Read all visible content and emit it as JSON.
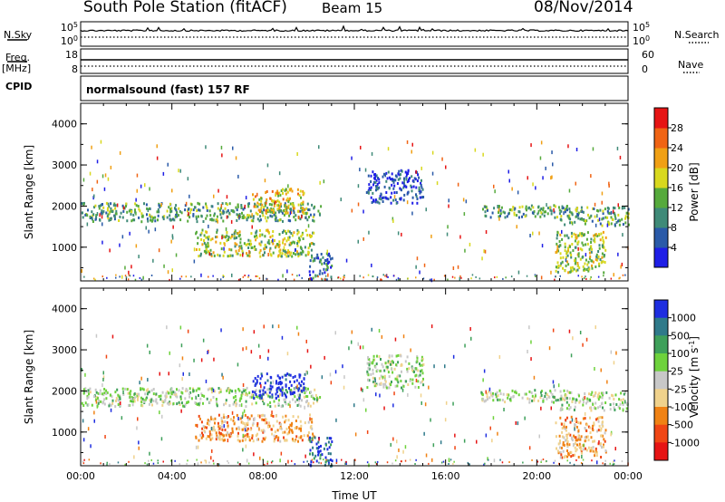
{
  "header": {
    "title": "South Pole Station (fitACF)",
    "beam": "Beam 15",
    "date": "08/Nov/2014"
  },
  "left_labels": {
    "nsky": "N.Sky",
    "freq_top": "Freq.",
    "freq_unit": "[MHz]",
    "cpid": "CPID"
  },
  "right_labels": {
    "nsearch": "N.Search",
    "nave": "Nave"
  },
  "mode_line": "normalsound (fast) 157 RF",
  "chart_data": [
    {
      "type": "line",
      "panel": "noise",
      "left_axis_ticks": [
        "10^5",
        "10^0"
      ],
      "right_axis_ticks": [
        "10^5",
        "10^0"
      ],
      "series": [
        {
          "name": "N.Sky"
        },
        {
          "name": "N.Search"
        }
      ]
    },
    {
      "type": "line",
      "panel": "frequency",
      "left_axis_ticks": [
        "18",
        "8"
      ],
      "right_axis_ticks": [
        "60",
        "0"
      ],
      "series": [
        {
          "name": "Freq."
        },
        {
          "name": "Nave"
        }
      ]
    },
    {
      "type": "heatmap",
      "panel": "power",
      "ylabel": "Slant Range [km]",
      "yticks": [
        1000,
        2000,
        3000,
        4000
      ],
      "ylim": [
        180,
        4500
      ],
      "colorbar_label": "Power [dB]",
      "colorbar_ticks": [
        4,
        8,
        12,
        16,
        20,
        24,
        28
      ],
      "colorbar_colors": [
        "#1e1ee6",
        "#2a5aa8",
        "#3f8a78",
        "#56aa3c",
        "#d8d81e",
        "#f0a014",
        "#f06414",
        "#e61414"
      ],
      "echo_regions": [
        {
          "t0": 0.0,
          "t1": 10.5,
          "r0": 1650,
          "r1": 2100,
          "level": 3
        },
        {
          "t0": 5.0,
          "t1": 10.2,
          "r0": 800,
          "r1": 1450,
          "level": 4
        },
        {
          "t0": 7.5,
          "t1": 9.8,
          "r0": 1850,
          "r1": 2450,
          "level": 5
        },
        {
          "t0": 10.0,
          "t1": 11.0,
          "r0": 200,
          "r1": 900,
          "level": 2
        },
        {
          "t0": 12.5,
          "t1": 15.0,
          "r0": 2100,
          "r1": 2900,
          "level": 1
        },
        {
          "t0": 17.5,
          "t1": 21.5,
          "r0": 1750,
          "r1": 2050,
          "level": 3
        },
        {
          "t0": 21.0,
          "t1": 24.0,
          "r0": 1550,
          "r1": 2000,
          "level": 3
        },
        {
          "t0": 20.8,
          "t1": 23.0,
          "r0": 400,
          "r1": 1400,
          "level": 4
        }
      ]
    },
    {
      "type": "heatmap",
      "panel": "velocity",
      "ylabel": "Slant Range [km]",
      "yticks": [
        1000,
        2000,
        3000,
        4000
      ],
      "ylim": [
        180,
        4500
      ],
      "xlabel": "Time UT",
      "xticks": [
        "00:00",
        "04:00",
        "08:00",
        "12:00",
        "16:00",
        "20:00",
        "00:00"
      ],
      "xlim": [
        0,
        24
      ],
      "colorbar_label": "Velocity [m s^-1]",
      "colorbar_ticks": [
        "1000",
        "500",
        "100",
        "25",
        "-25",
        "-100",
        "-500",
        "-1000"
      ],
      "colorbar_colors": [
        "#1e2ee0",
        "#2f7a8a",
        "#3ea05a",
        "#6ed23c",
        "#c8c8c8",
        "#f0d28c",
        "#f08214",
        "#f04614",
        "#e61414"
      ],
      "echo_regions": [
        {
          "t0": 0.0,
          "t1": 10.5,
          "r0": 1650,
          "r1": 2100,
          "level": 4
        },
        {
          "t0": 5.0,
          "t1": 10.2,
          "r0": 800,
          "r1": 1450,
          "level": 6
        },
        {
          "t0": 7.5,
          "t1": 9.8,
          "r0": 1850,
          "r1": 2450,
          "level": 0
        },
        {
          "t0": 10.0,
          "t1": 11.0,
          "r0": 200,
          "r1": 900,
          "level": 1
        },
        {
          "t0": 12.5,
          "t1": 15.0,
          "r0": 2100,
          "r1": 2900,
          "level": 4
        },
        {
          "t0": 17.5,
          "t1": 21.5,
          "r0": 1750,
          "r1": 2050,
          "level": 4
        },
        {
          "t0": 21.0,
          "t1": 24.0,
          "r0": 1550,
          "r1": 2000,
          "level": 4
        },
        {
          "t0": 20.8,
          "t1": 23.0,
          "r0": 400,
          "r1": 1400,
          "level": 6
        }
      ]
    }
  ]
}
